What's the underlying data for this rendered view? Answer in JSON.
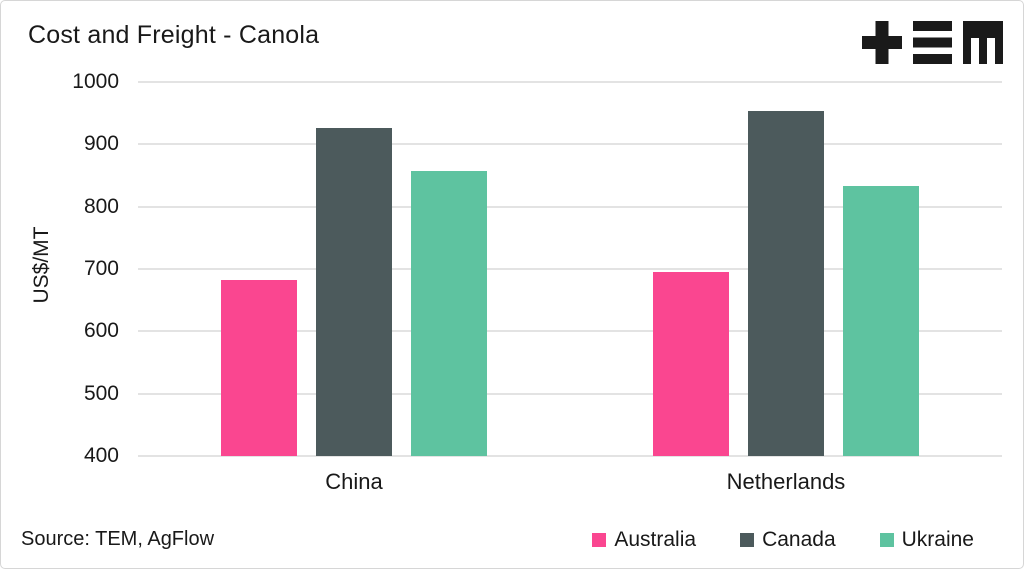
{
  "header": {
    "title": "Cost and Freight - Canola",
    "logo_icon": "tem-logo"
  },
  "footer": {
    "source": "Source: TEM, AgFlow"
  },
  "colors": {
    "australia": "#fa4690",
    "canada": "#4c5a5c",
    "ukraine": "#5ec3a0",
    "grid": "#e3e3e3",
    "text": "#191919",
    "logo": "#1a1a1a",
    "border": "#d6d6d6"
  },
  "chart_data": {
    "type": "bar",
    "title": "Cost and Freight - Canola",
    "xlabel": "",
    "ylabel": "US$/MT",
    "categories": [
      "China",
      "Netherlands"
    ],
    "series": [
      {
        "name": "Australia",
        "color": "#fa4690",
        "values": [
          682,
          695
        ]
      },
      {
        "name": "Canada",
        "color": "#4c5a5c",
        "values": [
          926,
          953
        ]
      },
      {
        "name": "Ukraine",
        "color": "#5ec3a0",
        "values": [
          858,
          833
        ]
      }
    ],
    "ylim": [
      400,
      1000
    ],
    "yticks": [
      400,
      500,
      600,
      700,
      800,
      900,
      1000
    ],
    "grid": true,
    "legend_position": "bottom-right",
    "source": "Source: TEM, AgFlow"
  }
}
